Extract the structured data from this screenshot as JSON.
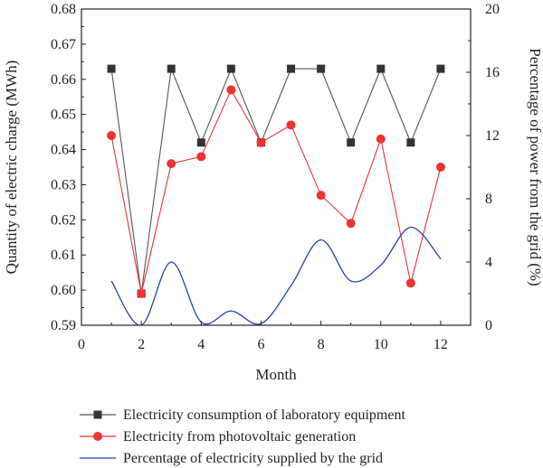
{
  "chart_data": {
    "type": "line",
    "xlabel": "Month",
    "ylabel_left": "Quantity of electric charge (MWh)",
    "ylabel_right": "Percentage of power from the grid (%)",
    "xlim": [
      0,
      13
    ],
    "ylim_left": [
      0.59,
      0.68
    ],
    "ylim_right": [
      0,
      20
    ],
    "x_ticks": [
      "0",
      "2",
      "4",
      "6",
      "8",
      "10",
      "12"
    ],
    "y_left_ticks": [
      "0.59",
      "0.60",
      "0.61",
      "0.62",
      "0.63",
      "0.64",
      "0.65",
      "0.66",
      "0.67",
      "0.68"
    ],
    "y_right_ticks": [
      "0",
      "4",
      "8",
      "12",
      "16",
      "20"
    ],
    "legend_position": "bottom",
    "series": [
      {
        "name": "Electricity consumption of laboratory equipment",
        "axis": "left",
        "color": "#333333",
        "line_color": "#555555",
        "marker": "square",
        "x": [
          1,
          2,
          3,
          4,
          5,
          6,
          7,
          8,
          9,
          10,
          11,
          12
        ],
        "values": [
          0.663,
          0.599,
          0.663,
          0.642,
          0.663,
          0.642,
          0.663,
          0.663,
          0.642,
          0.663,
          0.642,
          0.663
        ]
      },
      {
        "name": "Electricity from photovoltaic generation",
        "axis": "left",
        "color": "#ee3333",
        "line_color": "#ee3333",
        "marker": "circle",
        "x": [
          1,
          2,
          3,
          4,
          5,
          6,
          7,
          8,
          9,
          10,
          11,
          12
        ],
        "values": [
          0.644,
          0.599,
          0.636,
          0.638,
          0.657,
          0.642,
          0.647,
          0.627,
          0.619,
          0.643,
          0.602,
          0.635
        ]
      },
      {
        "name": "Percentage of electricity supplied by the grid",
        "axis": "right",
        "color": "#2244aa",
        "line_color": "#2244aa",
        "marker": "none",
        "smooth": true,
        "x": [
          1,
          2,
          3,
          4,
          5,
          6,
          7,
          8,
          9,
          10,
          11,
          12
        ],
        "values": [
          2.8,
          0,
          4.0,
          0.2,
          0.9,
          0.1,
          2.5,
          5.4,
          2.8,
          3.8,
          6.2,
          4.2
        ]
      }
    ]
  }
}
